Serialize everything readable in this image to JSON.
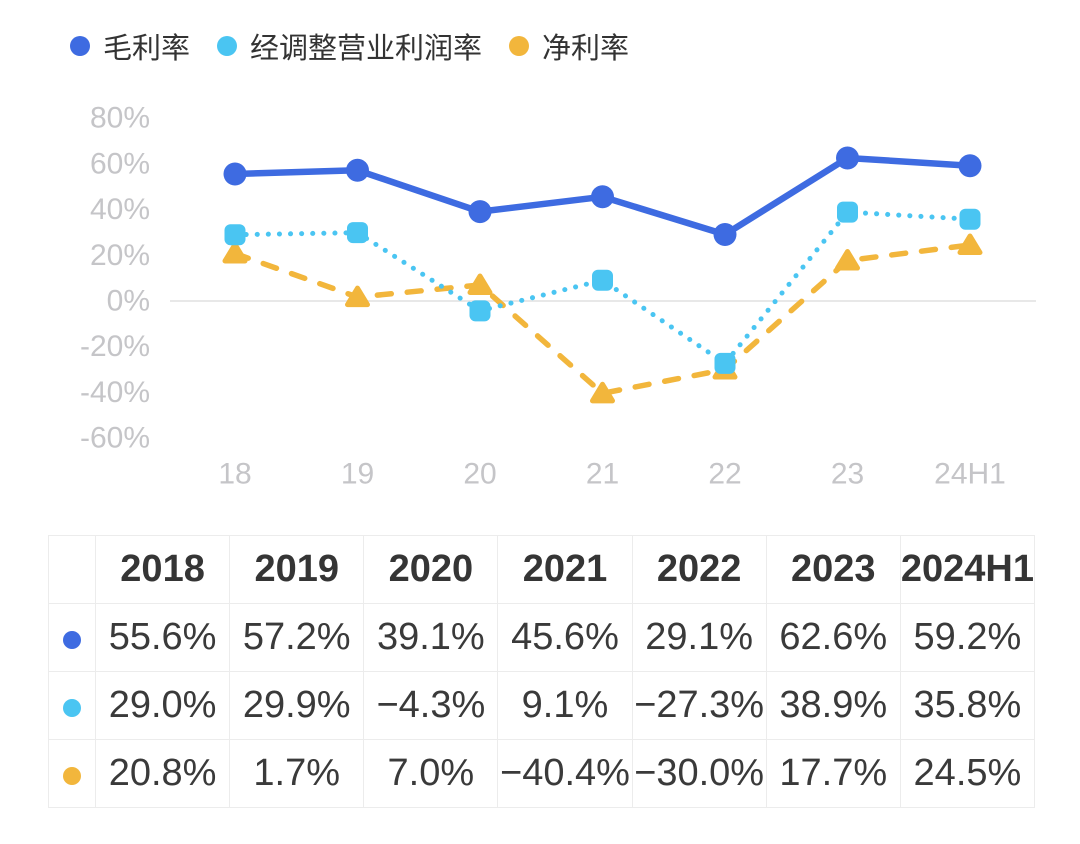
{
  "legend": {
    "items": [
      {
        "label": "毛利率",
        "color": "#3E6BE1"
      },
      {
        "label": "经调整营业利润率",
        "color": "#4AC5F2"
      },
      {
        "label": "净利率",
        "color": "#F2B63C"
      }
    ]
  },
  "chart_data": {
    "type": "line",
    "x": [
      "18",
      "19",
      "20",
      "21",
      "22",
      "23",
      "24H1"
    ],
    "series": [
      {
        "name": "毛利率",
        "color": "#3E6BE1",
        "line_style": "solid",
        "marker": "circle",
        "values": [
          55.6,
          57.2,
          39.1,
          45.6,
          29.1,
          62.6,
          59.2
        ]
      },
      {
        "name": "经调整营业利润率",
        "color": "#4AC5F2",
        "line_style": "dotted",
        "marker": "square",
        "values": [
          29.0,
          29.9,
          -4.3,
          9.1,
          -27.3,
          38.9,
          35.8
        ]
      },
      {
        "name": "净利率",
        "color": "#F2B63C",
        "line_style": "dashed",
        "marker": "triangle",
        "values": [
          20.8,
          1.7,
          7.0,
          -40.4,
          -30.0,
          17.7,
          24.5
        ]
      }
    ],
    "ylim": [
      -60,
      80
    ],
    "yticks": [
      {
        "value": 80,
        "label": "80%"
      },
      {
        "value": 60,
        "label": "60%"
      },
      {
        "value": 40,
        "label": "40%"
      },
      {
        "value": 20,
        "label": "20%"
      },
      {
        "value": 0,
        "label": "0%"
      },
      {
        "value": -20,
        "label": "-20%"
      },
      {
        "value": -40,
        "label": "-40%"
      },
      {
        "value": -60,
        "label": "-60%"
      }
    ],
    "grid": "zero-line-only",
    "legend_position": "top-left",
    "axis_label_color": "#c5c5c8",
    "zero_line_color": "#e8e8e8"
  },
  "table": {
    "headers": [
      "",
      "2018",
      "2019",
      "2020",
      "2021",
      "2022",
      "2023",
      "2024H1"
    ],
    "rows": [
      {
        "series": "毛利率",
        "dot_color": "#3E6BE1",
        "values": [
          "55.6%",
          "57.2%",
          "39.1%",
          "45.6%",
          "29.1%",
          "62.6%",
          "59.2%"
        ]
      },
      {
        "series": "经调整营业利润率",
        "dot_color": "#4AC5F2",
        "values": [
          "29.0%",
          "29.9%",
          "−4.3%",
          "9.1%",
          "−27.3%",
          "38.9%",
          "35.8%"
        ]
      },
      {
        "series": "净利率",
        "dot_color": "#F2B63C",
        "values": [
          "20.8%",
          "1.7%",
          "7.0%",
          "−40.4%",
          "−30.0%",
          "17.7%",
          "24.5%"
        ]
      }
    ]
  }
}
